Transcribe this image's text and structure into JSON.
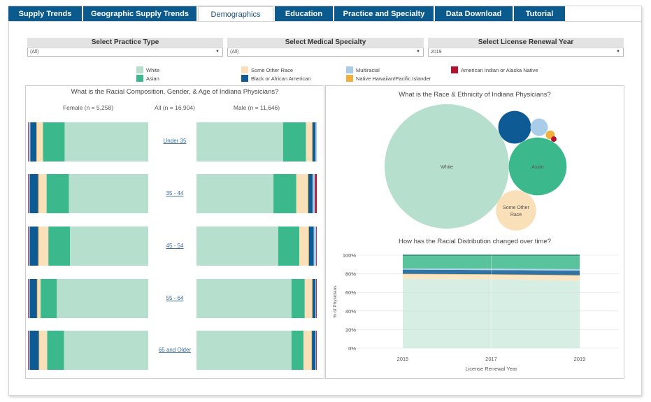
{
  "tabs": [
    {
      "label": "Supply Trends",
      "active": false
    },
    {
      "label": "Geographic Supply Trends",
      "active": false
    },
    {
      "label": "Demographics",
      "active": true
    },
    {
      "label": "Education",
      "active": false
    },
    {
      "label": "Practice and Specialty",
      "active": false
    },
    {
      "label": "Data Download",
      "active": false
    },
    {
      "label": "Tutorial",
      "active": false
    }
  ],
  "filters": [
    {
      "title": "Select Practice Type",
      "value": "(All)"
    },
    {
      "title": "Select Medical Specialty",
      "value": "(All)"
    },
    {
      "title": "Select License Renewal Year",
      "value": "2019"
    }
  ],
  "colors": {
    "White": "#b6e0cd",
    "Asian": "#3bb98c",
    "Some Other Race": "#fae0b8",
    "Black or African American": "#0d5a94",
    "Multiracial": "#a9cde8",
    "Native Hawaiian/Pacific Islander": "#f0b03e",
    "American Indian or Alaska Native": "#b5122f",
    "tab_bg": "#0b5a8e"
  },
  "legend": [
    "White",
    "Asian",
    "Some Other Race",
    "Black or African American",
    "Multiracial",
    "Native Hawaiian/Pacific Islander",
    "American Indian or Alaska Native"
  ],
  "chart_data": [
    {
      "type": "bar",
      "orientation": "horizontal-stacked",
      "title": "What is the Racial Composition, Gender, & Age of Indiana Physicians?",
      "column_headers": {
        "female": "Female (n = 5,258)",
        "all": "All (n = 16,904)",
        "male": "Male (n = 11,646)"
      },
      "categories": [
        "Under 35",
        "35 - 44",
        "45 - 54",
        "55 - 64",
        "65 and Older"
      ],
      "stack_order": [
        "American Indian or Alaska Native",
        "Multiracial",
        "Black or African American",
        "Native Hawaiian/Pacific Islander",
        "Some Other Race",
        "Asian",
        "White"
      ],
      "female": [
        {
          "American Indian or Alaska Native": 0.5,
          "Multiracial": 1.5,
          "Black or African American": 5,
          "Native Hawaiian/Pacific Islander": 0.5,
          "Some Other Race": 5,
          "Asian": 18,
          "White": 69.5
        },
        {
          "American Indian or Alaska Native": 0.5,
          "Multiracial": 1,
          "Black or African American": 7,
          "Native Hawaiian/Pacific Islander": 0.5,
          "Some Other Race": 6.5,
          "Asian": 18.5,
          "White": 66
        },
        {
          "American Indian or Alaska Native": 0.5,
          "Multiracial": 1,
          "Black or African American": 7,
          "Native Hawaiian/Pacific Islander": 0.5,
          "Some Other Race": 8,
          "Asian": 18,
          "White": 65
        },
        {
          "American Indian or Alaska Native": 0.5,
          "Multiracial": 1,
          "Black or African American": 6,
          "Native Hawaiian/Pacific Islander": 0.5,
          "Some Other Race": 2.5,
          "Asian": 13.5,
          "White": 76
        },
        {
          "American Indian or Alaska Native": 0.5,
          "Multiracial": 1,
          "Black or African American": 7.5,
          "Native Hawaiian/Pacific Islander": 0.5,
          "Some Other Race": 6.5,
          "Asian": 14,
          "White": 70
        }
      ],
      "male": [
        {
          "White": 72,
          "Asian": 19,
          "Some Other Race": 5,
          "Native Hawaiian/Pacific Islander": 0.5,
          "Black or African American": 2.5,
          "Multiracial": 1,
          "American Indian or Alaska Native": 0
        },
        {
          "White": 64,
          "Asian": 19,
          "Some Other Race": 9.5,
          "Native Hawaiian/Pacific Islander": 0.5,
          "Black or African American": 3.5,
          "Multiracial": 2,
          "American Indian or Alaska Native": 1.5
        },
        {
          "White": 68,
          "Asian": 17.5,
          "Some Other Race": 7.5,
          "Native Hawaiian/Pacific Islander": 0.5,
          "Black or African American": 4,
          "Multiracial": 2,
          "American Indian or Alaska Native": 0.5
        },
        {
          "White": 79,
          "Asian": 11,
          "Some Other Race": 6,
          "Native Hawaiian/Pacific Islander": 0.5,
          "Black or African American": 2.5,
          "Multiracial": 0.5,
          "American Indian or Alaska Native": 0.5
        },
        {
          "White": 79,
          "Asian": 10,
          "Some Other Race": 6.5,
          "Native Hawaiian/Pacific Islander": 0.5,
          "Black or African American": 3,
          "Multiracial": 0.5,
          "American Indian or Alaska Native": 0.5
        }
      ]
    },
    {
      "type": "bubble",
      "title": "What is the Race & Ethnicity of Indiana Physicians?",
      "bubbles": [
        {
          "label": "White",
          "share": 76.5,
          "show_label": true
        },
        {
          "label": "Asian",
          "share": 16.5,
          "show_label": true
        },
        {
          "label": "Black or African American",
          "share": 5.3,
          "show_label": false
        },
        {
          "label": "Some Other Race",
          "share": 8.0,
          "show_label": true
        },
        {
          "label": "Multiracial",
          "share": 1.5,
          "show_label": false
        },
        {
          "label": "Native Hawaiian/Pacific Islander",
          "share": 0.4,
          "show_label": false
        },
        {
          "label": "American Indian or Alaska Native",
          "share": 0.15,
          "show_label": false
        }
      ],
      "bubble_labels": {
        "White": "White",
        "Asian": "Asian",
        "Some Other Race": "Some Other Race"
      }
    },
    {
      "type": "area",
      "title": "How has the Racial Distribution changed over time?",
      "xlabel": "License Renewal Year",
      "ylabel": "% of Physicians",
      "x": [
        2015,
        2017,
        2019
      ],
      "x_ticks": [
        "2015",
        "2017",
        "2019"
      ],
      "y_ticks": [
        "0%",
        "20%",
        "40%",
        "60%",
        "80%",
        "100%"
      ],
      "ylim": [
        0,
        100
      ],
      "stack_order": [
        "White",
        "Some Other Race",
        "Native Hawaiian/Pacific Islander",
        "Black or African American",
        "Multiracial",
        "Asian",
        "American Indian or Alaska Native"
      ],
      "series": [
        {
          "name": "White",
          "values": [
            74.5,
            74,
            72.5
          ]
        },
        {
          "name": "Some Other Race",
          "values": [
            5,
            5,
            5.5
          ]
        },
        {
          "name": "Native Hawaiian/Pacific Islander",
          "values": [
            0.5,
            0.5,
            0.5
          ]
        },
        {
          "name": "Black or African American",
          "values": [
            4.5,
            4.5,
            5
          ]
        },
        {
          "name": "Multiracial",
          "values": [
            1,
            1.5,
            1.5
          ]
        },
        {
          "name": "Asian",
          "values": [
            14,
            14,
            14.5
          ]
        },
        {
          "name": "American Indian or Alaska Native",
          "values": [
            0.5,
            0.5,
            0.5
          ]
        }
      ]
    }
  ]
}
